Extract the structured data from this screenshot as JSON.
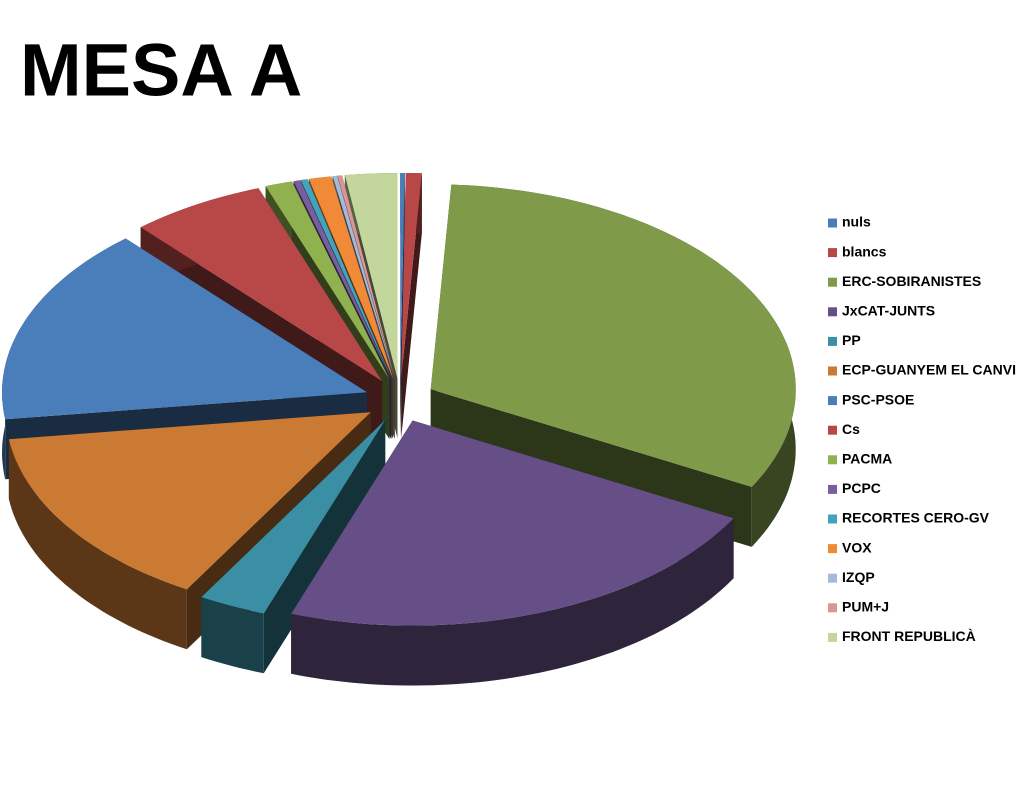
{
  "chart_data": {
    "type": "pie3d",
    "title": "MESA A",
    "categories": [
      "nuls",
      "blancs",
      "ERC-SOBIRANISTES",
      "JxCAT-JUNTS",
      "PP",
      "ECP-GUANYEM EL CANVI",
      "PSC-PSOE",
      "Cs",
      "PACMA",
      "PCPC",
      "RECORTES CERO-GV",
      "VOX",
      "IZQP",
      "PUM+J",
      "FRONT REPUBLICÀ"
    ],
    "values": [
      0.2,
      0.7,
      32,
      22.5,
      3,
      14.5,
      15.6,
      6,
      1.2,
      0.3,
      0.3,
      1,
      0.2,
      0.2,
      2.3
    ],
    "colors": [
      "#4a7ebb",
      "#b84848",
      "#7f9a48",
      "#664f86",
      "#3a8fa4",
      "#cb7a34",
      "#4a7ebb",
      "#b84848",
      "#8fb24e",
      "#7a5d9e",
      "#43a3bd",
      "#f08a36",
      "#a5b9d8",
      "#d99694",
      "#c3d69b"
    ],
    "legend": "right"
  }
}
